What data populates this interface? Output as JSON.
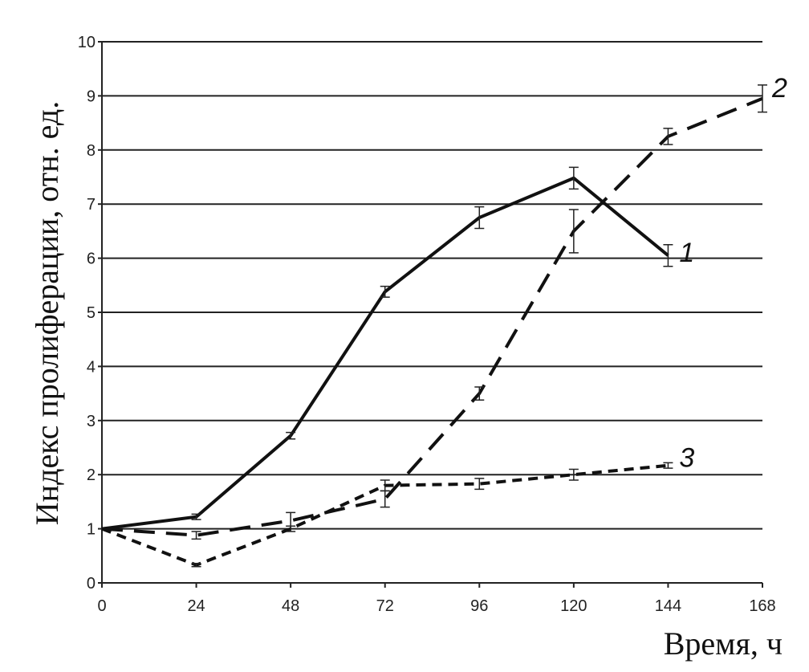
{
  "chart_data": {
    "type": "line",
    "xlabel": "Время, ч",
    "ylabel": "Индекс пролиферации, отн. ед.",
    "xlim": [
      0,
      168
    ],
    "ylim": [
      0,
      10
    ],
    "xticks": [
      0,
      24,
      48,
      72,
      96,
      120,
      144,
      168
    ],
    "yticks": [
      0,
      1,
      2,
      3,
      4,
      5,
      6,
      7,
      8,
      9,
      10
    ],
    "grid": "horizontal",
    "series": [
      {
        "name": "1",
        "style": "solid",
        "x": [
          0,
          24,
          48,
          72,
          96,
          120,
          144
        ],
        "y": [
          1,
          1.22,
          2.72,
          5.38,
          6.75,
          7.48,
          6.05
        ],
        "err": [
          0,
          0.05,
          0.06,
          0.1,
          0.2,
          0.2,
          0.2
        ]
      },
      {
        "name": "2",
        "style": "long-dash",
        "x": [
          0,
          24,
          48,
          72,
          96,
          120,
          144,
          168
        ],
        "y": [
          1,
          0.88,
          1.15,
          1.55,
          3.5,
          6.5,
          8.25,
          8.95
        ],
        "err": [
          0,
          0.07,
          0.15,
          0.15,
          0.12,
          0.4,
          0.15,
          0.25
        ]
      },
      {
        "name": "3",
        "style": "short-dash",
        "x": [
          0,
          24,
          48,
          72,
          96,
          120,
          144
        ],
        "y": [
          1,
          0.33,
          1.0,
          1.8,
          1.83,
          2.0,
          2.17
        ],
        "err": [
          0,
          0.03,
          0.05,
          0.1,
          0.1,
          0.1,
          0.05
        ]
      }
    ],
    "color": "#111111"
  }
}
